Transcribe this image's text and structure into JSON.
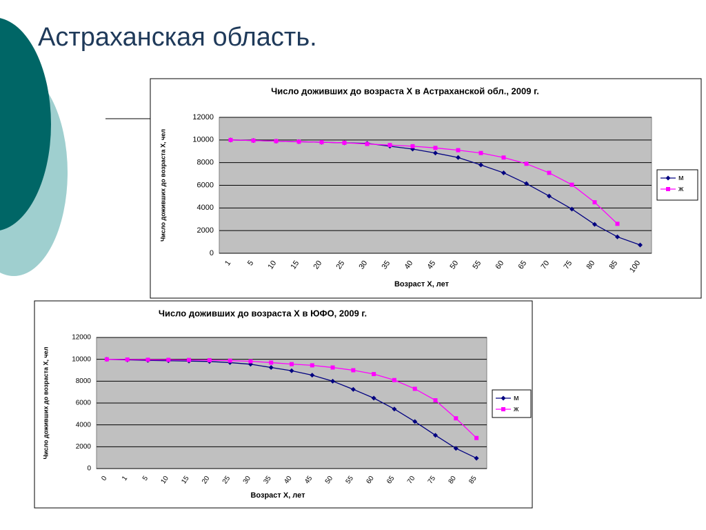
{
  "header": {
    "title": "Астраханская область."
  },
  "chart_data": [
    {
      "type": "line",
      "title": "Число доживших до возраста Х в Астраханской обл., 2009 г.",
      "x_label": "Возраст Х, лет",
      "y_label": "Число доживших до возраста Х, чел",
      "categories": [
        "1",
        "5",
        "10",
        "15",
        "20",
        "25",
        "30",
        "35",
        "40",
        "45",
        "50",
        "55",
        "60",
        "65",
        "70",
        "75",
        "80",
        "85",
        "100"
      ],
      "series": [
        {
          "name": "м",
          "color": "#000080",
          "marker": "diamond",
          "values": [
            10000,
            9950,
            9900,
            9850,
            9800,
            9750,
            9700,
            9450,
            9200,
            8850,
            8450,
            7800,
            7100,
            6150,
            5050,
            3900,
            2550,
            1450,
            730
          ]
        },
        {
          "name": "ж",
          "color": "#ff00ff",
          "marker": "square",
          "values": [
            10000,
            9950,
            9900,
            9850,
            9800,
            9750,
            9650,
            9550,
            9450,
            9300,
            9100,
            8850,
            8450,
            7900,
            7100,
            6050,
            4500,
            2600,
            null
          ]
        }
      ],
      "ylim": [
        0,
        12000
      ],
      "yticks": [
        0,
        2000,
        4000,
        6000,
        8000,
        10000,
        12000
      ],
      "grid": true,
      "legend": "right"
    },
    {
      "type": "line",
      "title": "Число доживших до возраста Х в ЮФО, 2009 г.",
      "x_label": "Возраст Х, лет",
      "y_label": "Число доживших до возраста Х, чел",
      "categories": [
        "0",
        "1",
        "5",
        "10",
        "15",
        "20",
        "25",
        "30",
        "35",
        "40",
        "45",
        "50",
        "55",
        "60",
        "65",
        "70",
        "75",
        "80",
        "85"
      ],
      "series": [
        {
          "name": "м",
          "color": "#000080",
          "marker": "diamond",
          "values": [
            10000,
            9950,
            9900,
            9870,
            9840,
            9800,
            9700,
            9550,
            9250,
            8950,
            8550,
            8000,
            7250,
            6450,
            5450,
            4300,
            3050,
            1850,
            950
          ]
        },
        {
          "name": "ж",
          "color": "#ff00ff",
          "marker": "square",
          "values": [
            10000,
            9980,
            9960,
            9950,
            9940,
            9920,
            9880,
            9820,
            9700,
            9560,
            9450,
            9250,
            9000,
            8650,
            8100,
            7300,
            6250,
            4600,
            2800
          ]
        }
      ],
      "ylim": [
        0,
        12000
      ],
      "yticks": [
        0,
        2000,
        4000,
        6000,
        8000,
        10000,
        12000
      ],
      "grid": true,
      "legend": "right"
    }
  ]
}
